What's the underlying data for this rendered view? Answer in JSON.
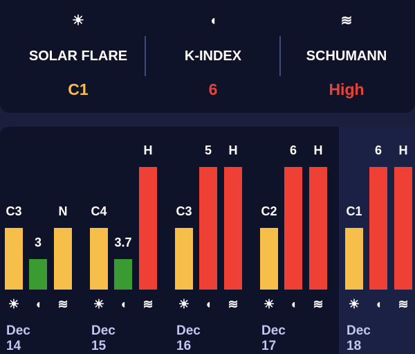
{
  "summary": [
    {
      "icon": "sun-icon",
      "glyph": "☀",
      "label": "SOLAR FLARE",
      "value": "C1",
      "color": "#f5bf4a"
    },
    {
      "icon": "magnet-icon",
      "glyph": "◖",
      "label": "K-INDEX",
      "value": "6",
      "color": "#e8433a"
    },
    {
      "icon": "waves-icon",
      "glyph": "≋",
      "label": "SCHUMANN",
      "value": "High",
      "color": "#e8433a"
    }
  ],
  "colors": {
    "yellow": "#f5bf4a",
    "green": "#3a9b32",
    "red": "#ef4036"
  },
  "icons": [
    {
      "name": "sun-icon",
      "glyph": "☀"
    },
    {
      "name": "magnet-icon",
      "glyph": "◖"
    },
    {
      "name": "waves-icon",
      "glyph": "≋"
    }
  ],
  "days": [
    {
      "date": "Dec 14",
      "selected": false,
      "bars": [
        {
          "label": "C3",
          "level": 0.5,
          "color": "yellow"
        },
        {
          "label": "3",
          "level": 0.25,
          "color": "green"
        },
        {
          "label": "N",
          "level": 0.5,
          "color": "yellow"
        }
      ]
    },
    {
      "date": "Dec 15",
      "selected": false,
      "bars": [
        {
          "label": "C4",
          "level": 0.5,
          "color": "yellow"
        },
        {
          "label": "3.7",
          "level": 0.25,
          "color": "green"
        },
        {
          "label": "H",
          "level": 1,
          "color": "red"
        }
      ]
    },
    {
      "date": "Dec 16",
      "selected": false,
      "bars": [
        {
          "label": "C3",
          "level": 0.5,
          "color": "yellow"
        },
        {
          "label": "5",
          "level": 1,
          "color": "red"
        },
        {
          "label": "H",
          "level": 1,
          "color": "red"
        }
      ]
    },
    {
      "date": "Dec 17",
      "selected": false,
      "bars": [
        {
          "label": "C2",
          "level": 0.5,
          "color": "yellow"
        },
        {
          "label": "6",
          "level": 1,
          "color": "red"
        },
        {
          "label": "H",
          "level": 1,
          "color": "red"
        }
      ]
    },
    {
      "date": "Dec 18",
      "selected": true,
      "bars": [
        {
          "label": "C1",
          "level": 0.5,
          "color": "yellow"
        },
        {
          "label": "6",
          "level": 1,
          "color": "red"
        },
        {
          "label": "H",
          "level": 1,
          "color": "red"
        }
      ]
    }
  ]
}
